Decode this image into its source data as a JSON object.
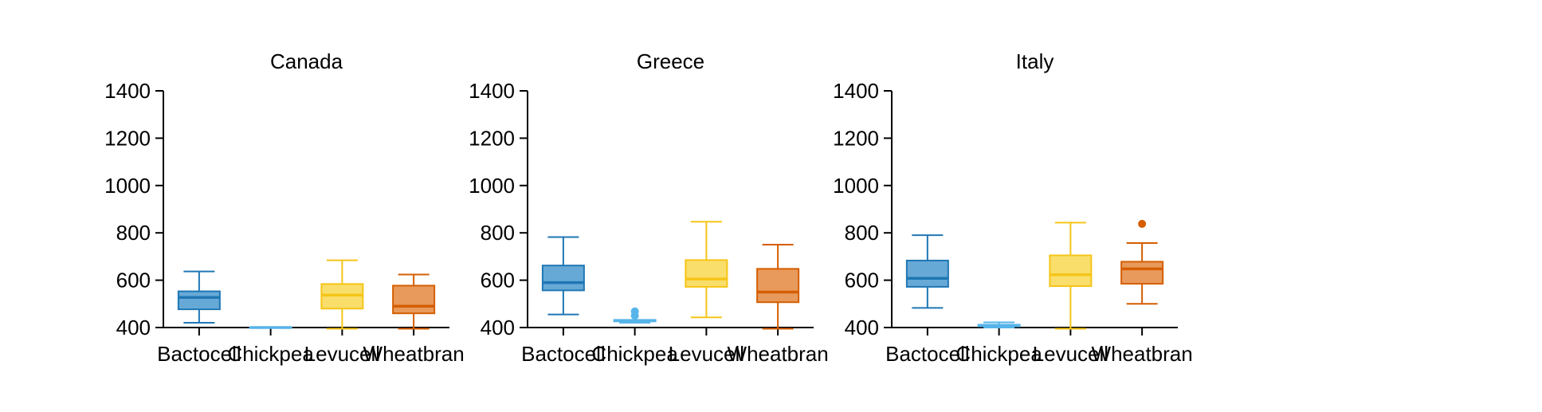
{
  "chart_data": [
    {
      "type": "box",
      "title": "Canada",
      "categories": [
        "Bactocell",
        "Chickpea",
        "Levucell",
        "Wheatbran"
      ],
      "ylim": [
        400,
        1400
      ],
      "yticks": [
        400,
        600,
        800,
        1000,
        1200,
        1400
      ],
      "boxes": [
        {
          "whislo": 420,
          "q1": 477,
          "med": 527,
          "q3": 553,
          "whishi": 637,
          "fliers": []
        },
        {
          "whislo": 400,
          "q1": 400,
          "med": 400,
          "q3": 400,
          "whishi": 400,
          "fliers": []
        },
        {
          "whislo": 395,
          "q1": 480,
          "med": 537,
          "q3": 584,
          "whishi": 684,
          "fliers": []
        },
        {
          "whislo": 395,
          "q1": 460,
          "med": 490,
          "q3": 577,
          "whishi": 624,
          "fliers": []
        }
      ]
    },
    {
      "type": "box",
      "title": "Greece",
      "categories": [
        "Bactocell",
        "Chickpea",
        "Levucell",
        "Wheatbran"
      ],
      "ylim": [
        400,
        1400
      ],
      "yticks": [
        400,
        600,
        800,
        1000,
        1200,
        1400
      ],
      "boxes": [
        {
          "whislo": 455,
          "q1": 557,
          "med": 590,
          "q3": 662,
          "whishi": 782,
          "fliers": []
        },
        {
          "whislo": 420,
          "q1": 426,
          "med": 430,
          "q3": 432,
          "whishi": 432,
          "fliers": [
            450,
            468
          ]
        },
        {
          "whislo": 443,
          "q1": 572,
          "med": 605,
          "q3": 685,
          "whishi": 847,
          "fliers": []
        },
        {
          "whislo": 395,
          "q1": 507,
          "med": 550,
          "q3": 648,
          "whishi": 750,
          "fliers": []
        }
      ]
    },
    {
      "type": "box",
      "title": "Italy",
      "categories": [
        "Bactocell",
        "Chickpea",
        "Levucell",
        "Wheatbran"
      ],
      "ylim": [
        400,
        1400
      ],
      "yticks": [
        400,
        600,
        800,
        1000,
        1200,
        1400
      ],
      "boxes": [
        {
          "whislo": 483,
          "q1": 572,
          "med": 608,
          "q3": 683,
          "whishi": 790,
          "fliers": []
        },
        {
          "whislo": 400,
          "q1": 405,
          "med": 408,
          "q3": 412,
          "whishi": 422,
          "fliers": []
        },
        {
          "whislo": 395,
          "q1": 575,
          "med": 623,
          "q3": 705,
          "whishi": 843,
          "fliers": []
        },
        {
          "whislo": 500,
          "q1": 585,
          "med": 648,
          "q3": 678,
          "whishi": 757,
          "fliers": [
            838
          ]
        }
      ]
    }
  ],
  "colors": {
    "Bactocell": {
      "fill": "#67a9d6",
      "stroke": "#1f77b4"
    },
    "Chickpea": {
      "fill": "#a5d4f0",
      "stroke": "#56b4e9"
    },
    "Levucell": {
      "fill": "#f9de6b",
      "stroke": "#f5c518"
    },
    "Wheatbran": {
      "fill": "#e89a5c",
      "stroke": "#d55e00"
    }
  }
}
